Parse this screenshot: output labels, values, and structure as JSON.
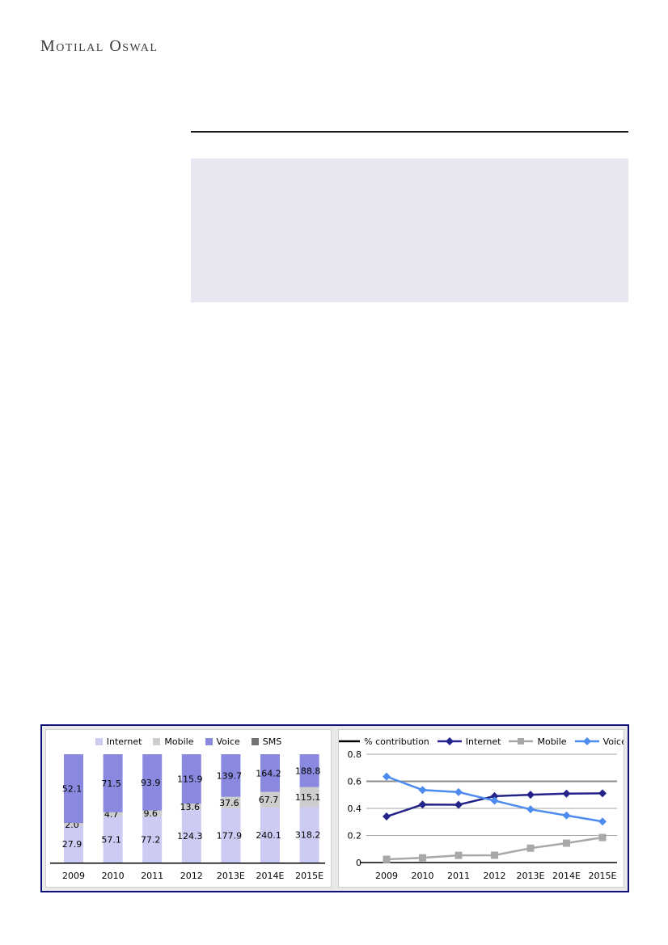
{
  "header": {
    "logo": "Motilal Oswal"
  },
  "colors": {
    "highlight_box_bg": "#e7e6f1",
    "frame_border": "#10107a",
    "frame_bg": "#e9e9e9",
    "panel_border": "#cfcfcf",
    "gridline": "#a6a6a6",
    "gridline_emphasis": "#8c8c8c",
    "axis_line": "#000000",
    "label_text": "#000000"
  },
  "chart_data": [
    {
      "type": "bar",
      "title": "",
      "stacking": "percent",
      "legend_position": "top",
      "data_labels": true,
      "categories": [
        "2009",
        "2010",
        "2011",
        "2012",
        "2013E",
        "2014E",
        "2015E"
      ],
      "series": [
        {
          "name": "Internet",
          "color": "#cbcbf3",
          "values": [
            27.9,
            57.1,
            77.2,
            124.3,
            177.9,
            240.1,
            318.2
          ]
        },
        {
          "name": "Mobile",
          "color": "#cdcdcd",
          "values": [
            2.0,
            4.7,
            9.6,
            13.6,
            37.6,
            67.7,
            115.1
          ]
        },
        {
          "name": "Voice",
          "color": "#8a89e0",
          "values": [
            52.1,
            71.5,
            93.9,
            115.9,
            139.7,
            164.2,
            188.8
          ]
        },
        {
          "name": "SMS",
          "color": "#737373",
          "values": [
            0,
            0,
            0,
            0,
            0,
            0,
            0
          ]
        }
      ]
    },
    {
      "type": "line",
      "title": "",
      "legend_position": "top",
      "grid": true,
      "categories": [
        "2009",
        "2010",
        "2011",
        "2012",
        "2013E",
        "2014E",
        "2015E"
      ],
      "ylim": [
        0,
        0.8
      ],
      "yticks": [
        {
          "value": 0,
          "label": "0"
        },
        {
          "value": 0.2,
          "label": "0.2"
        },
        {
          "value": 0.4,
          "label": "0.4"
        },
        {
          "value": 0.6,
          "label": "0.6"
        },
        {
          "value": 0.8,
          "label": "0.8"
        }
      ],
      "emphasis_gridline": 0.6,
      "series": [
        {
          "name": "% contribution",
          "color": "#000000",
          "marker": "none",
          "values": []
        },
        {
          "name": "Internet",
          "color": "#23238a",
          "marker": "diamond",
          "values": [
            0.34,
            0.428,
            0.427,
            0.49,
            0.501,
            0.509,
            0.511
          ]
        },
        {
          "name": "Mobile",
          "color": "#a8a8a8",
          "marker": "square",
          "values": [
            0.024,
            0.035,
            0.053,
            0.054,
            0.106,
            0.143,
            0.185
          ]
        },
        {
          "name": "Voice",
          "color": "#4d8bf0",
          "marker": "diamond",
          "values": [
            0.635,
            0.536,
            0.52,
            0.457,
            0.393,
            0.348,
            0.303
          ]
        }
      ]
    }
  ]
}
